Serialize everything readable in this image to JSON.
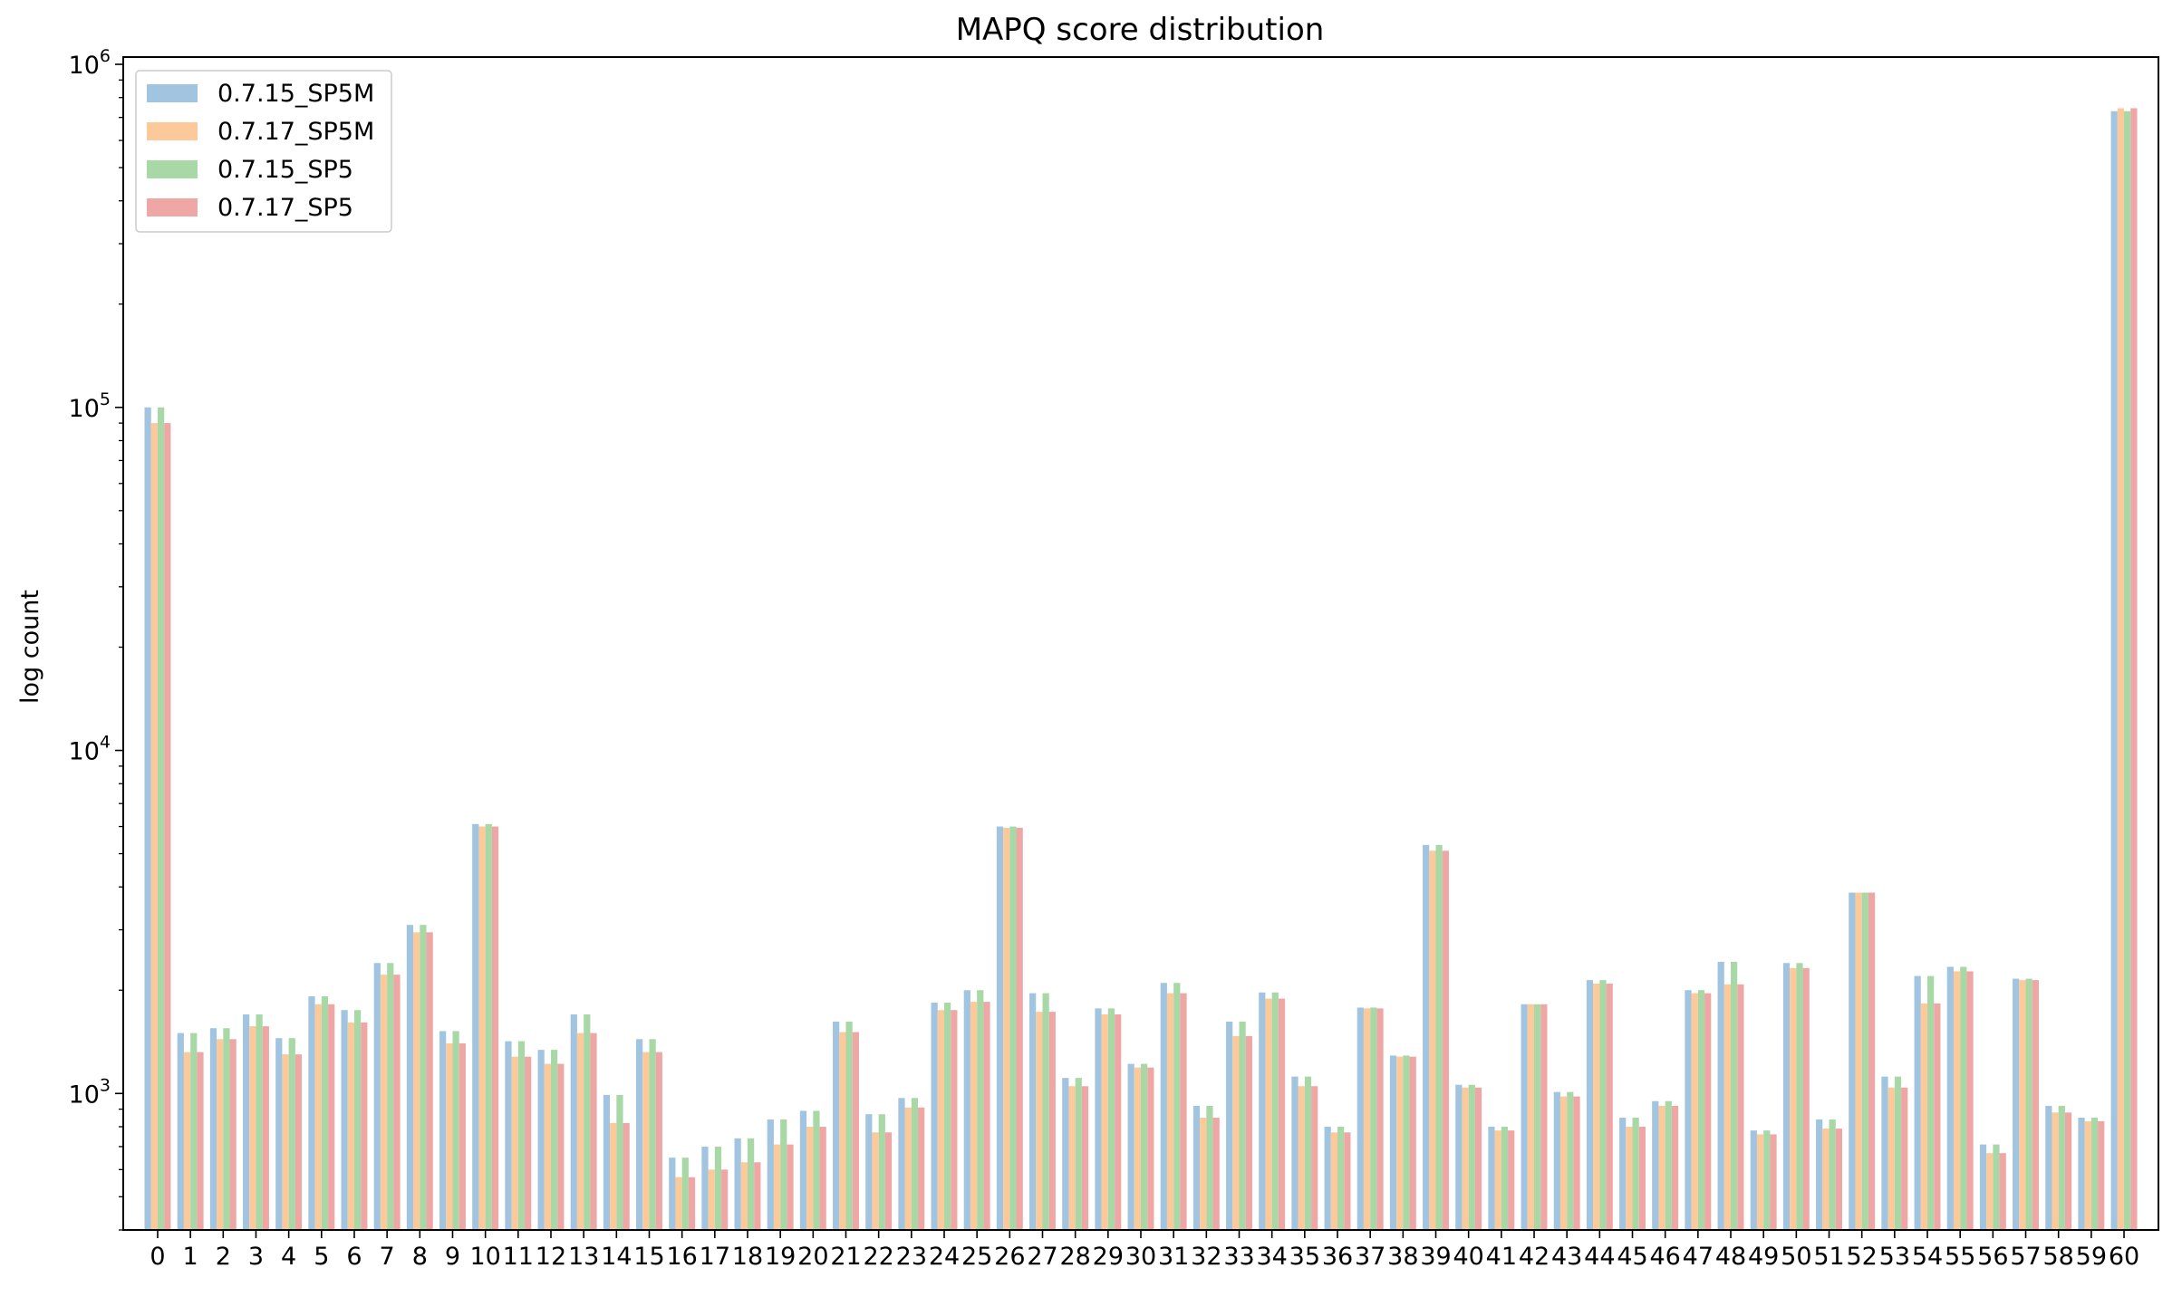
{
  "chart_data": {
    "type": "bar",
    "title": "MAPQ score distribution",
    "xlabel": "",
    "ylabel": "log count",
    "yscale": "log",
    "ylim": [
      400,
      1050000
    ],
    "grid": false,
    "legend_position": "top-left",
    "y_ticks": [
      {
        "value": 1000,
        "label": "10^3"
      },
      {
        "value": 10000,
        "label": "10^4"
      },
      {
        "value": 100000,
        "label": "10^5"
      },
      {
        "value": 1000000,
        "label": "10^6"
      }
    ],
    "categories": [
      "0",
      "1",
      "2",
      "3",
      "4",
      "5",
      "6",
      "7",
      "8",
      "9",
      "10",
      "11",
      "12",
      "13",
      "14",
      "15",
      "16",
      "17",
      "18",
      "19",
      "20",
      "21",
      "22",
      "23",
      "24",
      "25",
      "26",
      "27",
      "28",
      "29",
      "30",
      "31",
      "32",
      "33",
      "34",
      "35",
      "36",
      "37",
      "38",
      "39",
      "40",
      "41",
      "42",
      "43",
      "44",
      "45",
      "46",
      "47",
      "48",
      "49",
      "50",
      "51",
      "52",
      "53",
      "54",
      "55",
      "56",
      "57",
      "58",
      "59",
      "60"
    ],
    "series": [
      {
        "name": "0.7.15_SP5M",
        "color": "#a1c4e0",
        "values": [
          100000,
          1500,
          1550,
          1700,
          1450,
          1920,
          1750,
          2400,
          3100,
          1520,
          6100,
          1420,
          1340,
          1700,
          990,
          1440,
          650,
          700,
          740,
          840,
          890,
          1620,
          870,
          970,
          1840,
          2000,
          6000,
          1960,
          1110,
          1770,
          1220,
          2100,
          920,
          1620,
          1970,
          1120,
          800,
          1780,
          1290,
          5300,
          1060,
          800,
          1820,
          1010,
          2140,
          850,
          950,
          2000,
          2420,
          780,
          2400,
          840,
          3850,
          1120,
          2200,
          2340,
          710,
          2160,
          920,
          850,
          730000
        ]
      },
      {
        "name": "0.7.17_SP5M",
        "color": "#fcc99a",
        "values": [
          90000,
          1320,
          1440,
          1570,
          1300,
          1820,
          1610,
          2220,
          2950,
          1400,
          6000,
          1280,
          1220,
          1500,
          820,
          1320,
          570,
          600,
          630,
          710,
          800,
          1510,
          770,
          910,
          1750,
          1850,
          5950,
          1730,
          1050,
          1700,
          1190,
          1960,
          850,
          1470,
          1890,
          1050,
          770,
          1770,
          1280,
          5100,
          1040,
          780,
          1820,
          980,
          2090,
          800,
          920,
          1960,
          2080,
          760,
          2320,
          790,
          3850,
          1040,
          1830,
          2270,
          670,
          2140,
          880,
          830,
          745000
        ]
      },
      {
        "name": "0.7.15_SP5",
        "color": "#a8d8a6",
        "values": [
          100000,
          1500,
          1550,
          1700,
          1450,
          1920,
          1750,
          2400,
          3100,
          1520,
          6100,
          1420,
          1340,
          1700,
          990,
          1440,
          650,
          700,
          740,
          840,
          890,
          1620,
          870,
          970,
          1840,
          2000,
          6000,
          1960,
          1110,
          1770,
          1220,
          2100,
          920,
          1620,
          1970,
          1120,
          800,
          1780,
          1290,
          5300,
          1060,
          800,
          1820,
          1010,
          2140,
          850,
          950,
          2000,
          2420,
          780,
          2400,
          840,
          3850,
          1120,
          2200,
          2340,
          710,
          2160,
          920,
          850,
          730000
        ]
      },
      {
        "name": "0.7.17_SP5",
        "color": "#efa7a6",
        "values": [
          90000,
          1320,
          1440,
          1570,
          1300,
          1820,
          1610,
          2220,
          2950,
          1400,
          6000,
          1280,
          1220,
          1500,
          820,
          1320,
          570,
          600,
          630,
          710,
          800,
          1510,
          770,
          910,
          1750,
          1850,
          5950,
          1730,
          1050,
          1700,
          1190,
          1960,
          850,
          1470,
          1890,
          1050,
          770,
          1770,
          1280,
          5100,
          1040,
          780,
          1820,
          980,
          2090,
          800,
          920,
          1960,
          2080,
          760,
          2320,
          790,
          3850,
          1040,
          1830,
          2270,
          670,
          2140,
          880,
          830,
          745000
        ]
      }
    ]
  }
}
